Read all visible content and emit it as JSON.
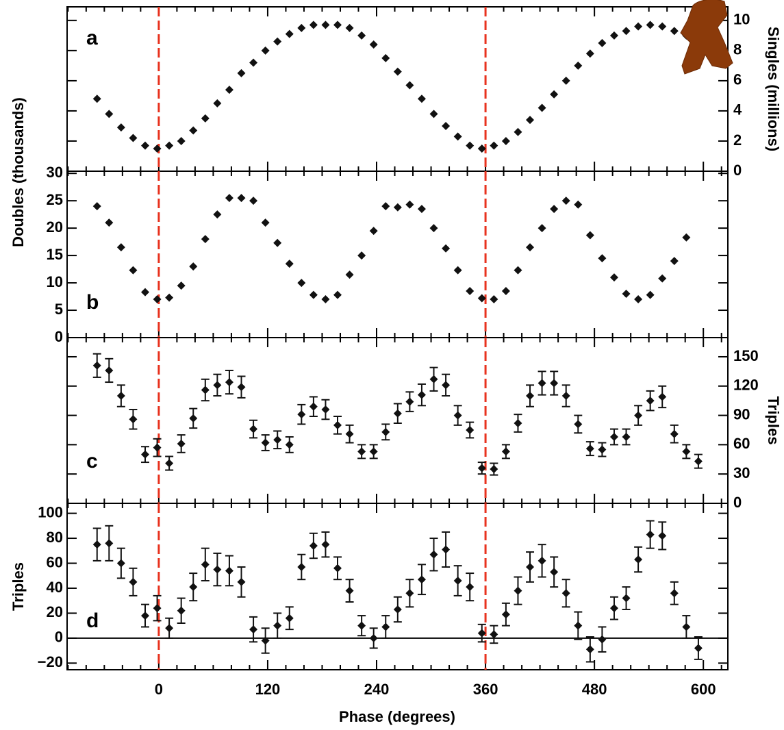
{
  "chart_data": [
    {
      "type": "scatter",
      "panel_label": "a",
      "ylabel": "Singles (millions)",
      "y_axis_side": "right",
      "color": "#111111",
      "x": [
        -68,
        -54.75,
        -41.5,
        -28.25,
        -15,
        -1.75,
        11.5,
        24.75,
        38,
        51.25,
        64.5,
        77.75,
        91,
        104.25,
        117.5,
        130.75,
        144,
        157.25,
        170.5,
        183.75,
        197,
        210.25,
        223.5,
        236.75,
        250,
        263.25,
        276.5,
        289.75,
        303,
        316.25,
        329.5,
        342.75,
        356,
        369.25,
        382.5,
        395.75,
        409,
        422.25,
        435.5,
        448.75,
        462,
        475.25,
        488.5,
        501.75,
        515,
        528.25,
        541.5,
        554.75,
        568,
        581.25
      ],
      "values": [
        4.8,
        3.8,
        2.9,
        2.2,
        1.7,
        1.5,
        1.7,
        2.0,
        2.7,
        3.5,
        4.5,
        5.4,
        6.5,
        7.2,
        8.0,
        8.6,
        9.1,
        9.5,
        9.7,
        9.7,
        9.7,
        9.5,
        9.0,
        8.4,
        7.5,
        6.6,
        5.7,
        4.8,
        3.8,
        3.0,
        2.3,
        1.7,
        1.5,
        1.7,
        2.0,
        2.6,
        3.4,
        4.2,
        5.1,
        6.0,
        7.0,
        7.8,
        8.5,
        9.0,
        9.3,
        9.6,
        9.7,
        9.6,
        9.3,
        9.0
      ],
      "xlim": [
        -101,
        627
      ],
      "xticks": [
        0,
        120,
        240,
        360,
        480,
        600
      ],
      "xminor": [
        -100,
        -80,
        -60,
        -40,
        -20,
        20,
        40,
        60,
        80,
        100,
        140,
        160,
        180,
        200,
        220,
        260,
        280,
        300,
        320,
        340,
        380,
        400,
        420,
        440,
        460,
        500,
        520,
        540,
        560,
        580,
        620
      ],
      "ylim": [
        0,
        10.9
      ],
      "yticks": [
        0,
        2,
        4,
        6,
        8,
        10
      ],
      "vlines": [
        0,
        360
      ],
      "vline_color": "#e8321e",
      "show_xtick_labels": false
    },
    {
      "type": "scatter",
      "panel_label": "b",
      "ylabel": "Doubles (thousands)",
      "y_axis_side": "left",
      "color": "#111111",
      "x": [
        -68,
        -54.75,
        -41.5,
        -28.25,
        -15,
        -1.75,
        11.5,
        24.75,
        38,
        51.25,
        64.5,
        77.75,
        91,
        104.25,
        117.5,
        130.75,
        144,
        157.25,
        170.5,
        183.75,
        197,
        210.25,
        223.5,
        236.75,
        250,
        263.25,
        276.5,
        289.75,
        303,
        316.25,
        329.5,
        342.75,
        356,
        369.25,
        382.5,
        395.75,
        409,
        422.25,
        435.5,
        448.75,
        462,
        475.25,
        488.5,
        501.75,
        515,
        528.25,
        541.5,
        554.75,
        568,
        581.25
      ],
      "values": [
        24,
        21,
        16.5,
        12.3,
        8.3,
        7,
        7.3,
        9.5,
        13,
        18,
        22.5,
        25.5,
        25.5,
        25,
        21,
        17.3,
        13.5,
        10,
        7.8,
        7,
        7.8,
        11.5,
        15,
        19.5,
        24,
        23.8,
        24.3,
        23.5,
        20,
        16.3,
        12.3,
        8.5,
        7.2,
        7,
        8.5,
        12.3,
        16.5,
        20,
        23.5,
        25,
        24.3,
        18.7,
        14.5,
        11,
        8,
        7,
        7.8,
        10.8,
        14,
        18.3
      ],
      "xlim": [
        -101,
        627
      ],
      "xticks": [
        0,
        120,
        240,
        360,
        480,
        600
      ],
      "xminor": [
        -100,
        -80,
        -60,
        -40,
        -20,
        20,
        40,
        60,
        80,
        100,
        140,
        160,
        180,
        200,
        220,
        260,
        280,
        300,
        320,
        340,
        380,
        400,
        420,
        440,
        460,
        500,
        520,
        540,
        560,
        580,
        620
      ],
      "ylim": [
        0,
        30.4
      ],
      "yticks": [
        0,
        5,
        10,
        15,
        20,
        25,
        30
      ],
      "vlines": [
        0,
        360
      ],
      "vline_color": "#e8321e",
      "show_xtick_labels": false
    },
    {
      "type": "errorbar",
      "panel_label": "c",
      "ylabel": "Triples",
      "y_axis_side": "right",
      "color": "#111111",
      "x": [
        -68,
        -54.75,
        -41.5,
        -28.25,
        -15,
        -1.75,
        11.5,
        24.75,
        38,
        51.25,
        64.5,
        77.75,
        91,
        104.25,
        117.5,
        130.75,
        144,
        157.25,
        170.5,
        183.75,
        197,
        210.25,
        223.5,
        236.75,
        250,
        263.25,
        276.5,
        289.75,
        303,
        316.25,
        329.5,
        342.75,
        356,
        369.25,
        382.5,
        395.75,
        409,
        422.25,
        435.5,
        448.75,
        462,
        475.25,
        488.5,
        501.75,
        515,
        528.25,
        541.5,
        554.75,
        568,
        581.25,
        594.5
      ],
      "values": [
        141,
        136,
        110,
        86,
        50,
        57,
        41,
        61,
        87,
        116,
        121,
        124,
        119,
        76,
        62,
        65,
        60,
        91,
        99,
        96,
        80,
        71,
        53,
        53,
        73,
        92,
        104,
        111,
        127,
        121,
        90,
        75,
        36,
        35,
        53,
        82,
        110,
        123,
        123,
        110,
        81,
        56,
        55,
        68,
        68,
        90,
        105,
        109,
        71,
        53,
        43
      ],
      "errors": [
        12,
        12,
        11,
        10,
        8,
        9,
        7,
        9,
        10,
        11,
        11,
        12,
        11,
        9,
        8,
        9,
        8,
        10,
        10,
        10,
        9,
        9,
        7,
        7,
        8,
        10,
        10,
        11,
        12,
        11,
        10,
        8,
        6,
        6,
        7,
        9,
        11,
        12,
        12,
        11,
        9,
        7,
        7,
        8,
        8,
        10,
        10,
        11,
        9,
        7,
        7
      ],
      "xlim": [
        -101,
        627
      ],
      "xticks": [
        0,
        120,
        240,
        360,
        480,
        600
      ],
      "xminor": [
        -100,
        -80,
        -60,
        -40,
        -20,
        20,
        40,
        60,
        80,
        100,
        140,
        160,
        180,
        200,
        220,
        260,
        280,
        300,
        320,
        340,
        380,
        400,
        420,
        440,
        460,
        500,
        520,
        540,
        560,
        580,
        620
      ],
      "ylim": [
        0,
        169.6
      ],
      "yticks": [
        0,
        30,
        60,
        90,
        120,
        150
      ],
      "vlines": [
        0,
        360
      ],
      "vline_color": "#e8321e",
      "show_xtick_labels": false
    },
    {
      "type": "errorbar",
      "panel_label": "d",
      "ylabel": "Triples",
      "xlabel": "Phase (degrees)",
      "y_axis_side": "left",
      "color": "#111111",
      "x": [
        -68,
        -54.75,
        -41.5,
        -28.25,
        -15,
        -1.75,
        11.5,
        24.75,
        38,
        51.25,
        64.5,
        77.75,
        91,
        104.25,
        117.5,
        130.75,
        144,
        157.25,
        170.5,
        183.75,
        197,
        210.25,
        223.5,
        236.75,
        250,
        263.25,
        276.5,
        289.75,
        303,
        316.25,
        329.5,
        342.75,
        356,
        369.25,
        382.5,
        395.75,
        409,
        422.25,
        435.5,
        448.75,
        462,
        475.25,
        488.5,
        501.75,
        515,
        528.25,
        541.5,
        554.75,
        568,
        581.25,
        594.5
      ],
      "values": [
        75,
        76,
        60,
        45,
        18,
        24,
        8,
        22,
        41,
        59,
        55,
        54,
        45,
        7,
        -2,
        10,
        16,
        57,
        74,
        75,
        56,
        38,
        10,
        0,
        9,
        23,
        36,
        47,
        67,
        71,
        46,
        41,
        4,
        3,
        19,
        38,
        57,
        62,
        53,
        36,
        10,
        -9,
        -1,
        24,
        32,
        63,
        83,
        82,
        36,
        9,
        -8
      ],
      "errors": [
        13,
        14,
        12,
        11,
        9,
        10,
        8,
        10,
        11,
        13,
        13,
        12,
        12,
        10,
        10,
        10,
        9,
        10,
        10,
        10,
        9,
        9,
        8,
        8,
        9,
        10,
        11,
        12,
        13,
        14,
        12,
        11,
        7,
        7,
        9,
        11,
        12,
        13,
        12,
        11,
        11,
        10,
        10,
        9,
        9,
        10,
        11,
        11,
        9,
        9,
        9
      ],
      "xlim": [
        -101,
        627
      ],
      "xticks": [
        0,
        120,
        240,
        360,
        480,
        600
      ],
      "xminor": [
        -100,
        -80,
        -60,
        -40,
        -20,
        20,
        40,
        60,
        80,
        100,
        140,
        160,
        180,
        200,
        220,
        260,
        280,
        300,
        320,
        340,
        380,
        400,
        420,
        440,
        460,
        500,
        520,
        540,
        560,
        580,
        620
      ],
      "ylim": [
        -25.3,
        108
      ],
      "yticks": [
        {
          "value": -20,
          "label": "−20"
        },
        0,
        20,
        40,
        60,
        80,
        100
      ],
      "hline": 0,
      "vlines": [
        0,
        360
      ],
      "vline_color": "#e8321e",
      "show_xtick_labels": true
    }
  ]
}
